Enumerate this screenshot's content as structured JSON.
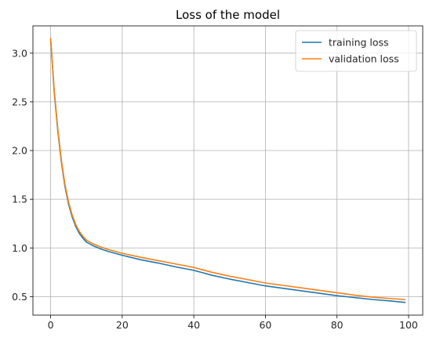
{
  "chart_data": {
    "type": "line",
    "title": "Loss of the model",
    "xlabel": "",
    "ylabel": "",
    "xlim": [
      -4.95,
      103.95
    ],
    "ylim": [
      0.31,
      3.28
    ],
    "xticks": [
      0,
      20,
      40,
      60,
      80,
      100
    ],
    "yticks": [
      0.5,
      1.0,
      1.5,
      2.0,
      2.5,
      3.0
    ],
    "xtick_labels": [
      "0",
      "20",
      "40",
      "60",
      "80",
      "100"
    ],
    "ytick_labels": [
      "0.5",
      "1.0",
      "1.5",
      "2.0",
      "2.5",
      "3.0"
    ],
    "grid": true,
    "legend": {
      "placement": "upper right",
      "entries": [
        "training loss",
        "validation loss"
      ]
    },
    "series": [
      {
        "name": "training loss",
        "color": "#1f77b4",
        "x": [
          0,
          1,
          2,
          3,
          4,
          5,
          6,
          7,
          8,
          9,
          10,
          12,
          14,
          16,
          18,
          20,
          25,
          30,
          35,
          40,
          45,
          50,
          55,
          60,
          65,
          70,
          75,
          80,
          85,
          90,
          95,
          99
        ],
        "y": [
          3.14,
          2.6,
          2.2,
          1.88,
          1.63,
          1.45,
          1.32,
          1.22,
          1.15,
          1.1,
          1.06,
          1.02,
          0.99,
          0.965,
          0.945,
          0.925,
          0.88,
          0.845,
          0.805,
          0.77,
          0.72,
          0.68,
          0.645,
          0.61,
          0.585,
          0.56,
          0.535,
          0.51,
          0.49,
          0.47,
          0.455,
          0.44
        ]
      },
      {
        "name": "validation loss",
        "color": "#ff7f0e",
        "x": [
          0,
          1,
          2,
          3,
          4,
          5,
          6,
          7,
          8,
          9,
          10,
          12,
          14,
          16,
          18,
          20,
          25,
          30,
          35,
          40,
          45,
          50,
          55,
          60,
          65,
          70,
          75,
          80,
          85,
          90,
          95,
          99
        ],
        "y": [
          3.15,
          2.62,
          2.22,
          1.9,
          1.65,
          1.47,
          1.34,
          1.24,
          1.17,
          1.12,
          1.08,
          1.04,
          1.01,
          0.985,
          0.965,
          0.945,
          0.905,
          0.87,
          0.835,
          0.8,
          0.75,
          0.71,
          0.675,
          0.64,
          0.615,
          0.59,
          0.565,
          0.54,
          0.515,
          0.495,
          0.48,
          0.47
        ]
      }
    ]
  }
}
